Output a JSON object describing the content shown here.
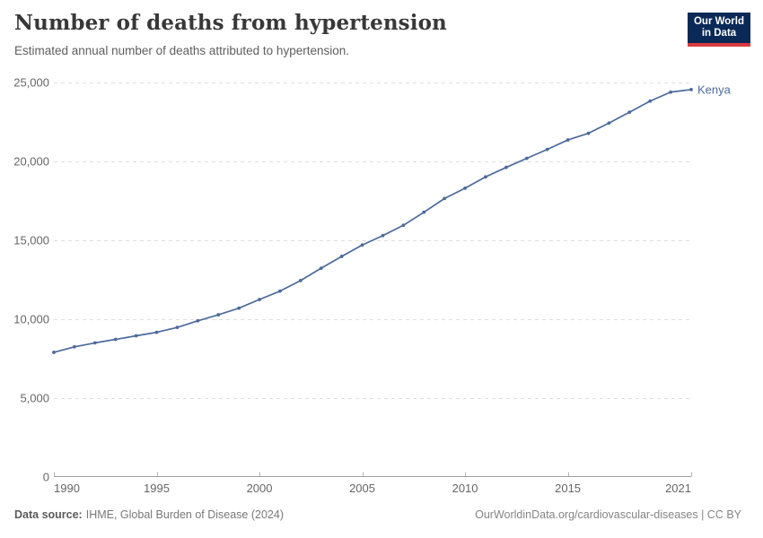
{
  "header": {
    "title": "Number of deaths from hypertension",
    "subtitle": "Estimated annual number of deaths attributed to hypertension.",
    "logo": {
      "line1": "Our World",
      "line2": "in Data",
      "bg_color": "#0a2956",
      "accent_color": "#d93b3f"
    }
  },
  "chart_data": {
    "type": "line",
    "title": "Number of deaths from hypertension",
    "subtitle": "Estimated annual number of deaths attributed to hypertension.",
    "entity": "Kenya",
    "x": [
      1990,
      1991,
      1992,
      1993,
      1994,
      1995,
      1996,
      1997,
      1998,
      1999,
      2000,
      2001,
      2002,
      2003,
      2004,
      2005,
      2006,
      2007,
      2008,
      2009,
      2010,
      2011,
      2012,
      2013,
      2014,
      2015,
      2016,
      2017,
      2018,
      2019,
      2020,
      2021
    ],
    "series": [
      {
        "name": "Kenya",
        "color": "#4c6a9c",
        "values": [
          7900,
          8250,
          8500,
          8720,
          8950,
          9170,
          9480,
          9900,
          10280,
          10700,
          11250,
          11780,
          12450,
          13230,
          13980,
          14700,
          15300,
          15950,
          16780,
          17650,
          18300,
          19020,
          19620,
          20190,
          20760,
          21360,
          21780,
          22430,
          23120,
          23820,
          24390,
          24550
        ]
      }
    ],
    "xlim": [
      1990,
      2021
    ],
    "ylim": [
      0,
      25000
    ],
    "xticks": [
      1990,
      1995,
      2000,
      2005,
      2010,
      2015,
      2021
    ],
    "yticks": [
      0,
      5000,
      10000,
      15000,
      20000,
      25000
    ],
    "ytick_labels": [
      "0",
      "5,000",
      "10,000",
      "15,000",
      "20,000",
      "25,000"
    ],
    "grid": "horizontal-dashed",
    "legend": "end-of-line-label",
    "colors": {
      "grid": "#dedede",
      "axis": "#a0a0a0",
      "tick": "#b3b3b3",
      "tick_label": "#666666"
    }
  },
  "footer": {
    "source_label": "Data source:",
    "source_value": "IHME, Global Burden of Disease (2024)",
    "link_text": "OurWorldinData.org/cardiovascular-diseases | CC BY"
  }
}
